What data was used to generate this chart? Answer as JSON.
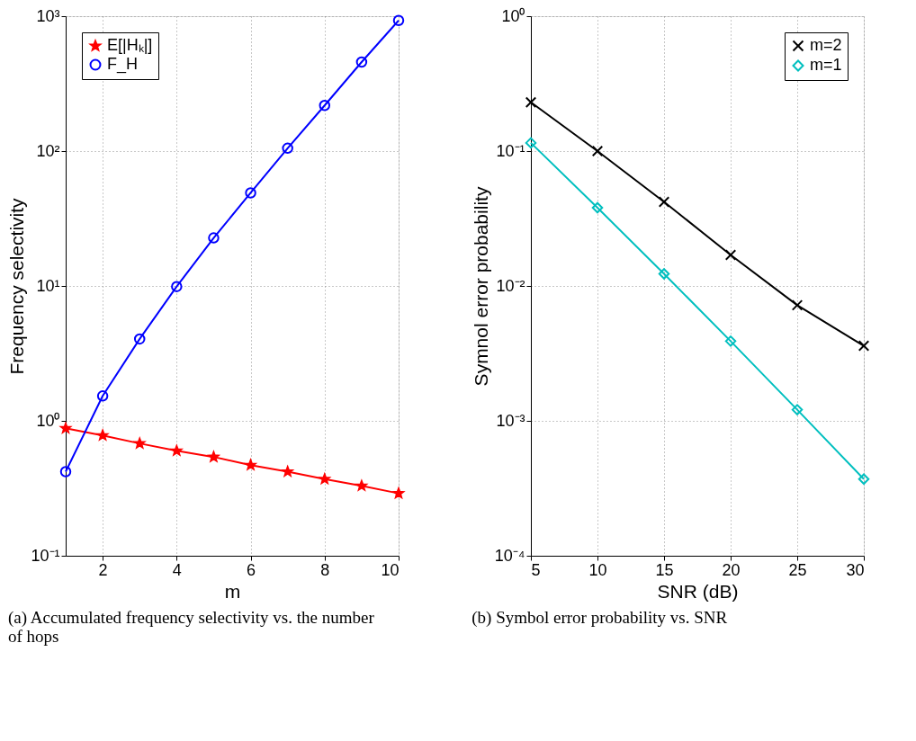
{
  "chart_data": [
    {
      "type": "line",
      "xlabel": "m",
      "ylabel": "Frequency selectivity",
      "log": "y",
      "grid": true,
      "legend": "top left",
      "line_style": "solid",
      "annotations": [
        "(a) Accumulated frequency selectivity vs. the number of hops"
      ],
      "xlim": [
        1,
        10
      ],
      "xticks": [
        2,
        4,
        6,
        8,
        10
      ],
      "ylim": [
        0.1,
        1000
      ],
      "yticks": [
        {
          "value": 0.1,
          "label": "10⁻¹"
        },
        {
          "value": 1,
          "label": "10⁰"
        },
        {
          "value": 10,
          "label": "10¹"
        },
        {
          "value": 100,
          "label": "10²"
        },
        {
          "value": 1000,
          "label": "10³"
        }
      ],
      "series": [
        {
          "name": "E[|Hₖ|]",
          "color": "#ff0000",
          "marker": "star",
          "x": [
            1,
            2,
            3,
            4,
            5,
            6,
            7,
            8,
            9,
            10
          ],
          "values": [
            0.88,
            0.78,
            0.68,
            0.6,
            0.54,
            0.47,
            0.42,
            0.37,
            0.33,
            0.29
          ]
        },
        {
          "name": "F_H",
          "color": "#0000ff",
          "marker": "circle",
          "x": [
            1,
            2,
            3,
            4,
            5,
            6,
            7,
            8,
            9,
            10
          ],
          "values": [
            0.42,
            1.53,
            4.05,
            9.9,
            22.7,
            49,
            105,
            218,
            457,
            930
          ]
        }
      ]
    },
    {
      "type": "line",
      "xlabel": "SNR (dB)",
      "ylabel": "Symnol error probability",
      "log": "y",
      "grid": true,
      "legend": "top right",
      "line_style": "solid",
      "annotations": [
        "(b) Symbol error probability vs. SNR"
      ],
      "xlim": [
        5,
        30
      ],
      "xticks": [
        5,
        10,
        15,
        20,
        25,
        30
      ],
      "ylim": [
        0.0001,
        1
      ],
      "yticks": [
        {
          "value": 0.0001,
          "label": "10⁻⁴"
        },
        {
          "value": 0.001,
          "label": "10⁻³"
        },
        {
          "value": 0.01,
          "label": "10⁻²"
        },
        {
          "value": 0.1,
          "label": "10⁻¹"
        },
        {
          "value": 1,
          "label": "10⁰"
        }
      ],
      "series": [
        {
          "name": "m=2",
          "color": "#000000",
          "marker": "cross",
          "x": [
            5,
            10,
            15,
            20,
            25,
            30
          ],
          "values": [
            0.23,
            0.1,
            0.042,
            0.017,
            0.0072,
            0.0036
          ]
        },
        {
          "name": "m=1",
          "color": "#00bfbf",
          "marker": "diamond",
          "x": [
            5,
            10,
            15,
            20,
            25,
            30
          ],
          "values": [
            0.115,
            0.038,
            0.0123,
            0.0039,
            0.00121,
            0.00037
          ]
        }
      ]
    }
  ]
}
